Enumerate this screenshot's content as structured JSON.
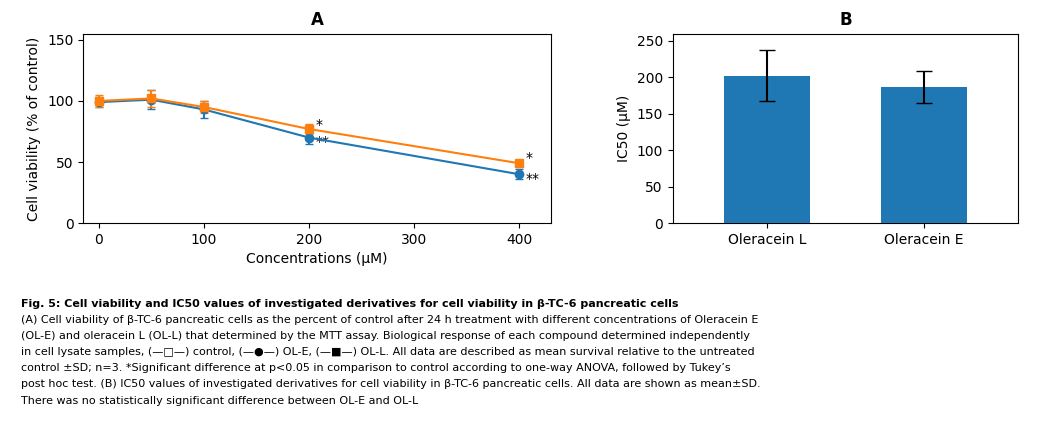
{
  "chart_data": [
    {
      "type": "line",
      "title": "A",
      "xlabel": "Concentrations (μM)",
      "ylabel": "Cell viability (% of control)",
      "xlim": [
        -15,
        430
      ],
      "ylim": [
        0,
        155
      ],
      "xticks": [
        0,
        100,
        200,
        300,
        400
      ],
      "yticks": [
        0,
        50,
        100,
        150
      ],
      "x": [
        0,
        50,
        100,
        200,
        400
      ],
      "series": [
        {
          "marker": "circle",
          "values": [
            99,
            101,
            93,
            70,
            40
          ],
          "errors": [
            4,
            8,
            7,
            5,
            4
          ]
        },
        {
          "marker": "square",
          "values": [
            100,
            102,
            95,
            77,
            49
          ],
          "errors": [
            5,
            7,
            5,
            4,
            3
          ]
        }
      ],
      "annotations": [
        {
          "x": 202,
          "y": 80,
          "text": "*"
        },
        {
          "x": 202,
          "y": 66,
          "text": "**"
        },
        {
          "x": 402,
          "y": 53,
          "text": "*"
        },
        {
          "x": 402,
          "y": 36,
          "text": "**"
        }
      ]
    },
    {
      "type": "bar",
      "title": "B",
      "ylabel": "IC50 (μM)",
      "categories": [
        "Oleracein L",
        "Oleracein E"
      ],
      "values": [
        202,
        187
      ],
      "errors": [
        35,
        22
      ],
      "ylim": [
        0,
        260
      ],
      "yticks": [
        0,
        50,
        100,
        150,
        200,
        250
      ]
    }
  ],
  "caption": [
    "Fig. 5: Cell viability and IC50 values of investigated derivatives for cell viability in β-TC-6 pancreatic cells",
    "(A) Cell viability of β-TC-6 pancreatic cells as the percent of control after 24 h treatment with different concentrations of Oleracein E",
    "(OL-E) and oleracein L (OL-L) that determined by the MTT assay. Biological response of each compound determined independently",
    "in cell lysate samples, (—□—) control, (—●—) OL-E, (—■—) OL-L. All data are described as mean survival relative to the untreated",
    "control ±SD; n=3. *Significant difference at p<0.05 in comparison to control according to one-way ANOVA, followed by Tukey’s",
    "post hoc test. (B) IC50 values of investigated derivatives for cell viability in β-TC-6 pancreatic cells. All data are shown as mean±SD.",
    "There was no statistically significant difference between OL-E and OL-L"
  ]
}
